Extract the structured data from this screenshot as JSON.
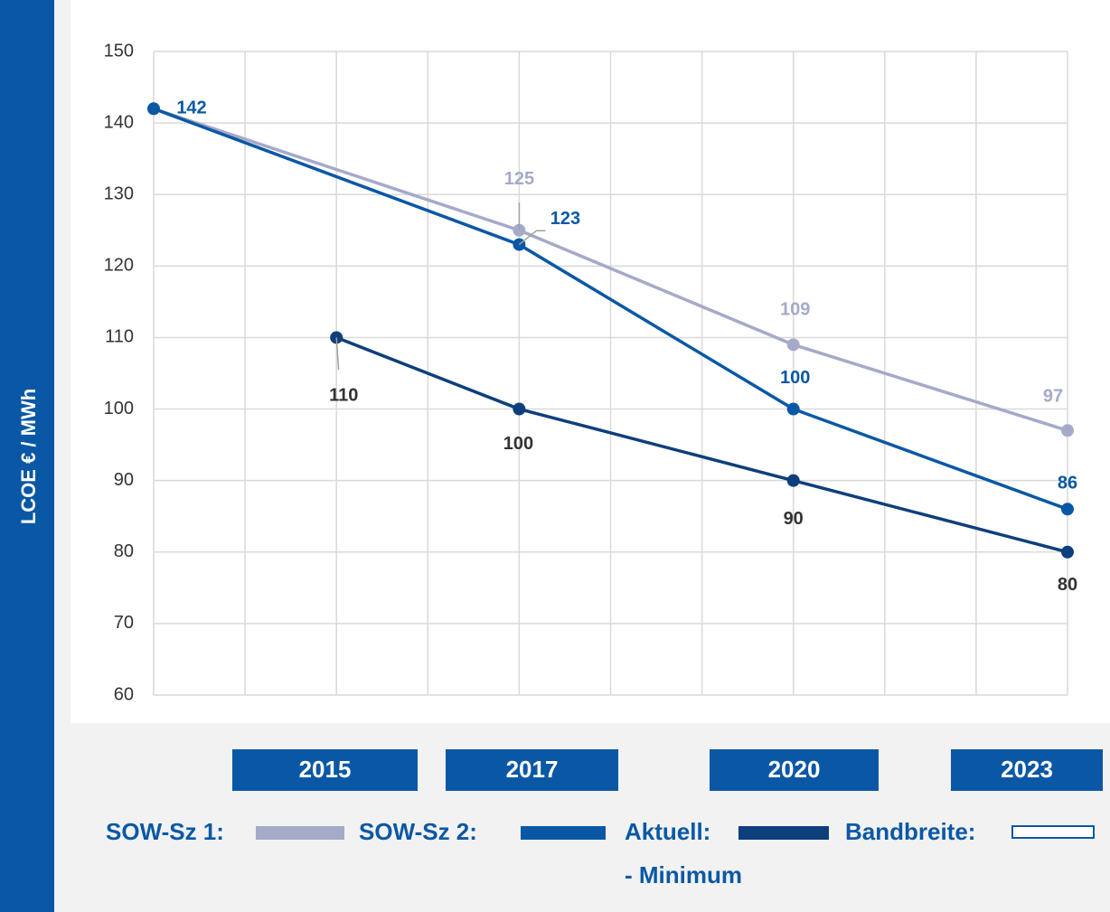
{
  "chart_data": {
    "type": "line",
    "y_label": "LCOE € / MWh",
    "xlim": [
      2013,
      2023
    ],
    "xticks": [
      2013,
      2014,
      2015,
      2016,
      2017,
      2018,
      2019,
      2020,
      2021,
      2022,
      2023
    ],
    "ylim": [
      60,
      150
    ],
    "yticks": [
      60,
      70,
      80,
      90,
      100,
      110,
      120,
      130,
      140,
      150
    ],
    "grid": true,
    "x_labels": [
      "2015",
      "2017",
      "2020",
      "2023"
    ],
    "series": [
      {
        "name": "SOW-Sz 1:",
        "color": "#a5aac8",
        "x": [
          2013,
          2017,
          2020,
          2023
        ],
        "values": [
          142,
          125,
          109,
          97
        ]
      },
      {
        "name": "SOW-Sz 2:",
        "color": "#0a58a5",
        "x": [
          2013,
          2017,
          2020,
          2023
        ],
        "values": [
          142,
          123,
          100,
          86
        ]
      },
      {
        "name": "Aktuell:",
        "name_line2": "- Minimum",
        "color": "#0d3f7c",
        "x": [
          2015,
          2017,
          2020,
          2023
        ],
        "values": [
          110,
          100,
          90,
          80
        ]
      }
    ],
    "legend_extra": {
      "name": "Bandbreite:"
    }
  }
}
